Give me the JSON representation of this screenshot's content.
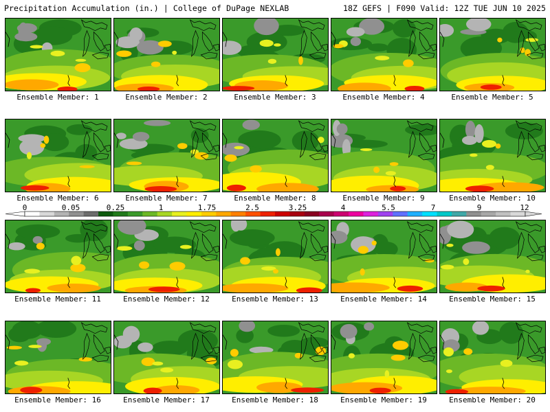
{
  "header": {
    "title_left": "Precipitation Accumulation (in.) | College of DuPage NEXLAB",
    "title_right": "18Z GEFS | F090 Valid: 12Z TUE JUN 10 2025"
  },
  "panels": [
    {
      "label": "Ensemble Member: 1"
    },
    {
      "label": "Ensemble Member: 2"
    },
    {
      "label": "Ensemble Member: 3"
    },
    {
      "label": "Ensemble Member: 4"
    },
    {
      "label": "Ensemble Member: 5"
    },
    {
      "label": "Ensemble Member: 6"
    },
    {
      "label": "Ensemble Member: 7"
    },
    {
      "label": "Ensemble Member: 8"
    },
    {
      "label": "Ensemble Member: 9"
    },
    {
      "label": "Ensemble Member: 10"
    },
    {
      "label": "Ensemble Member: 11"
    },
    {
      "label": "Ensemble Member: 12"
    },
    {
      "label": "Ensemble Member: 13"
    },
    {
      "label": "Ensemble Member: 14"
    },
    {
      "label": "Ensemble Member: 15"
    },
    {
      "label": "Ensemble Member: 16"
    },
    {
      "label": "Ensemble Member: 17"
    },
    {
      "label": "Ensemble Member: 18"
    },
    {
      "label": "Ensemble Member: 19"
    },
    {
      "label": "Ensemble Member: 20"
    }
  ],
  "colorbar": {
    "tick_labels": [
      "0",
      "0.05",
      "0.25",
      "1",
      "1.75",
      "2.5",
      "3.25",
      "4",
      "5.5",
      "7",
      "9",
      "12"
    ],
    "colors": [
      "#ffffff",
      "#d8d8d8",
      "#b4b4b4",
      "#909090",
      "#6c6c6c",
      "#0e5a0e",
      "#217a1b",
      "#3a9a2a",
      "#6cb826",
      "#a8d624",
      "#e8f020",
      "#ffee00",
      "#ffcc00",
      "#ffa800",
      "#ff8000",
      "#ff5000",
      "#ee2000",
      "#cc0000",
      "#a80010",
      "#880020",
      "#a8004c",
      "#cc0070",
      "#ee00a0",
      "#dd22dd",
      "#a040f0",
      "#6070ff",
      "#20b0ff",
      "#00e0ff",
      "#00c8c8",
      "#40a8a8",
      "#909090",
      "#a8a8a8",
      "#c0c0c0",
      "#d8d8d8"
    ]
  }
}
